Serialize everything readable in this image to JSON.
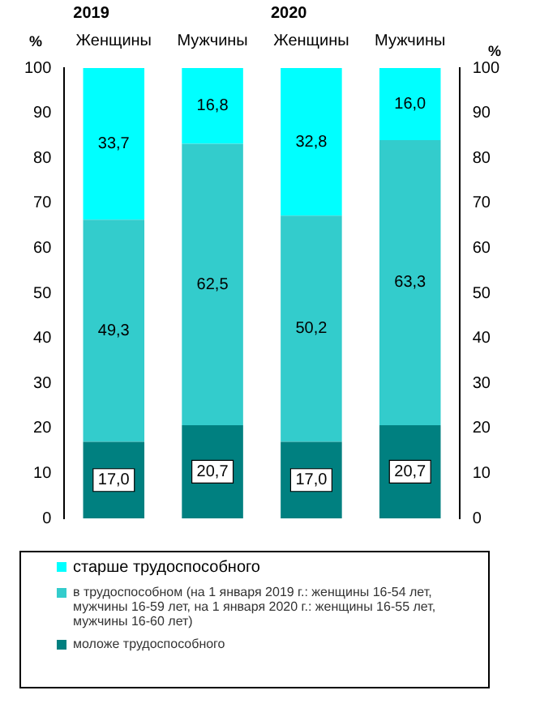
{
  "chart_data": {
    "type": "bar",
    "stacked": true,
    "categories": [
      "Женщины",
      "Мужчины",
      "Женщины",
      "Мужчины"
    ],
    "series": [
      {
        "name": "моложе трудоспособного",
        "color": "#008080",
        "values": [
          17.0,
          20.7,
          17.0,
          20.7
        ],
        "value_labels": [
          "17,0",
          "20,7",
          "17,0",
          "20,7"
        ]
      },
      {
        "name": "в трудоспособном (на 1 января 2019 г.: женщины 16-54 лет, мужчины 16-59 лет, на 1 января 2020 г.: женщины 16-55 лет, мужчины 16-60 лет)",
        "color": "#33cccc",
        "values": [
          49.3,
          62.5,
          50.2,
          63.3
        ],
        "value_labels": [
          "49,3",
          "62,5",
          "50,2",
          "63,3"
        ]
      },
      {
        "name": "старше трудоспособного",
        "color": "#00ffff",
        "values": [
          33.7,
          16.8,
          32.8,
          16.0
        ],
        "value_labels": [
          "33,7",
          "16,8",
          "32,8",
          "16,0"
        ]
      }
    ],
    "ylim": [
      0,
      100
    ],
    "yticks": [
      0,
      10,
      20,
      30,
      40,
      50,
      60,
      70,
      80,
      90,
      100
    ],
    "ylabel": "%",
    "y2lim": [
      0,
      100
    ],
    "y2ticks": [
      0,
      10,
      20,
      30,
      40,
      50,
      60,
      70,
      80,
      90,
      100
    ],
    "y2label": "%",
    "annotations": [
      "2019",
      "2020"
    ],
    "grid": false,
    "legend": "bottom"
  }
}
